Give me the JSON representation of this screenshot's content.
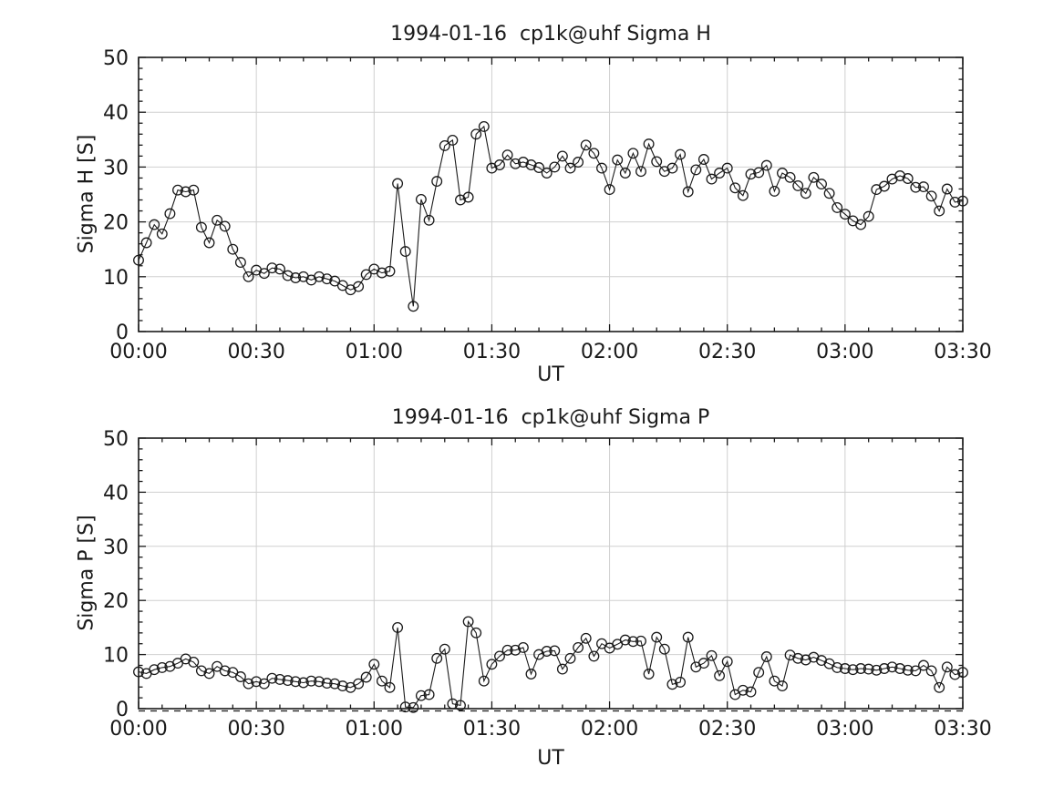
{
  "figure": {
    "background_color": "#ffffff",
    "text_color": "#1a1a1a"
  },
  "chart_data": [
    {
      "type": "line",
      "title": "1994-01-16  cp1k@uhf Sigma H",
      "xlabel": "UT",
      "ylabel": "Sigma H [S]",
      "ylim": [
        0,
        50
      ],
      "xlim_minutes": [
        0,
        210
      ],
      "yticks": [
        0,
        10,
        20,
        30,
        40,
        50
      ],
      "ytick_labels": [
        "0",
        "10",
        "20",
        "30",
        "40",
        "50"
      ],
      "xtick_minutes": [
        0,
        30,
        60,
        90,
        120,
        150,
        180,
        210
      ],
      "xtick_labels": [
        "00:00",
        "00:30",
        "01:00",
        "01:30",
        "02:00",
        "02:30",
        "03:00",
        "03:30"
      ],
      "x_minor_step_minutes": 6,
      "y_minor_step": 2,
      "grid": true,
      "legend": false,
      "marker": "open-circle",
      "line_color": "#1a1a1a",
      "grid_color": "#d0d0d0",
      "zero_dashed_line": false,
      "x_start_minutes": 0,
      "x_step_minutes": 2,
      "values": [
        13.0,
        16.2,
        19.5,
        17.8,
        21.5,
        25.8,
        25.5,
        25.8,
        19.0,
        16.2,
        20.3,
        19.2,
        15.0,
        12.6,
        10.0,
        11.2,
        10.6,
        11.6,
        11.4,
        10.2,
        9.8,
        10.0,
        9.4,
        10.0,
        9.6,
        9.2,
        8.4,
        7.6,
        8.2,
        10.4,
        11.4,
        10.7,
        11.0,
        27.0,
        14.6,
        4.6,
        24.1,
        20.3,
        27.4,
        33.9,
        34.9,
        24.0,
        24.5,
        36.0,
        37.4,
        29.8,
        30.4,
        32.2,
        30.6,
        30.9,
        30.4,
        29.9,
        28.9,
        30.0,
        32.0,
        29.8,
        30.9,
        34.0,
        32.5,
        29.8,
        25.9,
        31.3,
        28.9,
        32.5,
        29.2,
        34.2,
        31.0,
        29.2,
        29.8,
        32.3,
        25.5,
        29.5,
        31.4,
        27.8,
        28.9,
        29.8,
        26.2,
        24.8,
        28.7,
        29.0,
        30.3,
        25.6,
        28.9,
        28.1,
        26.6,
        25.2,
        28.1,
        26.9,
        25.2,
        22.6,
        21.4,
        20.2,
        19.5,
        21.0,
        25.9,
        26.5,
        27.8,
        28.4,
        27.9,
        26.3,
        26.4,
        24.7,
        22.0,
        26.0,
        23.6,
        23.8
      ]
    },
    {
      "type": "line",
      "title": "1994-01-16  cp1k@uhf Sigma P",
      "xlabel": "UT",
      "ylabel": "Sigma P [S]",
      "ylim": [
        0,
        50
      ],
      "xlim_minutes": [
        0,
        210
      ],
      "yticks": [
        0,
        10,
        20,
        30,
        40,
        50
      ],
      "ytick_labels": [
        "0",
        "10",
        "20",
        "30",
        "40",
        "50"
      ],
      "xtick_minutes": [
        0,
        30,
        60,
        90,
        120,
        150,
        180,
        210
      ],
      "xtick_labels": [
        "00:00",
        "00:30",
        "01:00",
        "01:30",
        "02:00",
        "02:30",
        "03:00",
        "03:30"
      ],
      "x_minor_step_minutes": 6,
      "y_minor_step": 2,
      "grid": true,
      "legend": false,
      "marker": "open-circle",
      "line_color": "#1a1a1a",
      "grid_color": "#d0d0d0",
      "zero_dashed_line": true,
      "x_start_minutes": 0,
      "x_step_minutes": 2,
      "values": [
        6.8,
        6.5,
        7.2,
        7.6,
        7.8,
        8.4,
        9.2,
        8.6,
        7.0,
        6.5,
        7.8,
        7.0,
        6.7,
        5.9,
        4.6,
        5.0,
        4.6,
        5.6,
        5.4,
        5.2,
        5.0,
        4.8,
        5.1,
        5.0,
        4.7,
        4.6,
        4.2,
        3.9,
        4.6,
        5.8,
        8.2,
        5.1,
        3.9,
        15.0,
        0.3,
        0.2,
        2.4,
        2.6,
        9.3,
        11.0,
        0.9,
        0.6,
        16.1,
        14.0,
        5.1,
        8.2,
        9.7,
        10.8,
        10.8,
        11.3,
        6.4,
        10.0,
        10.6,
        10.7,
        7.3,
        9.3,
        11.3,
        13.0,
        9.7,
        12.0,
        11.2,
        11.9,
        12.7,
        12.4,
        12.5,
        6.4,
        13.2,
        11.0,
        4.5,
        4.9,
        13.2,
        7.7,
        8.4,
        9.8,
        6.1,
        8.7,
        2.6,
        3.4,
        3.1,
        6.7,
        9.6,
        5.1,
        4.2,
        9.9,
        9.3,
        9.0,
        9.5,
        8.9,
        8.3,
        7.6,
        7.4,
        7.2,
        7.4,
        7.3,
        7.1,
        7.4,
        7.7,
        7.4,
        7.1,
        7.0,
        8.0,
        7.0,
        3.9,
        7.7,
        6.3,
        6.7
      ]
    }
  ]
}
